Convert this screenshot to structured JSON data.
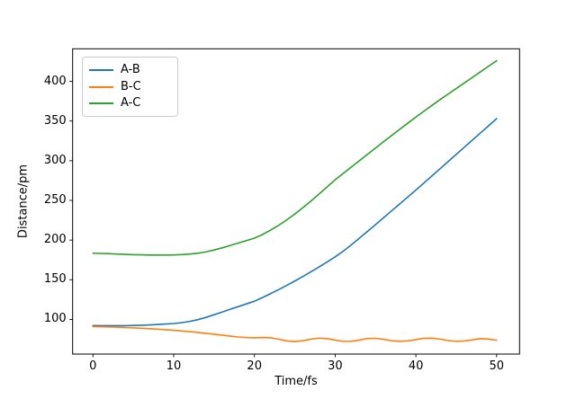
{
  "figure": {
    "background": "#ffffff",
    "text_color": "#000000",
    "spine_color": "#000000"
  },
  "chart_data": {
    "type": "line",
    "title": "",
    "xlabel": "Time/fs",
    "ylabel": "Distance/pm",
    "xlim": [
      -2.52,
      52.84
    ],
    "ylim": [
      56.4,
      441.0
    ],
    "xticks": [
      0,
      10,
      20,
      30,
      40,
      50
    ],
    "yticks": [
      100,
      150,
      200,
      250,
      300,
      350,
      400
    ],
    "grid": false,
    "legend_position": "upper left",
    "x": [
      0,
      1,
      2,
      3,
      4,
      5,
      6,
      7,
      8,
      9,
      10,
      11,
      12,
      13,
      14,
      15,
      16,
      17,
      18,
      19,
      20,
      21,
      22,
      23,
      24,
      25,
      26,
      27,
      28,
      29,
      30,
      31,
      32,
      33,
      34,
      35,
      36,
      37,
      38,
      39,
      40,
      41,
      42,
      43,
      44,
      45,
      46,
      47,
      48,
      49,
      50
    ],
    "series": [
      {
        "name": "A-B",
        "color": "#1f77b4",
        "values": [
          92.3,
          92.2,
          92.1,
          92.1,
          92.2,
          92.4,
          92.7,
          93.1,
          93.7,
          94.2,
          94.9,
          96.0,
          97.6,
          99.8,
          102.6,
          106.0,
          109.3,
          112.8,
          116.2,
          119.6,
          123.0,
          127.6,
          132.5,
          137.6,
          142.9,
          148.4,
          154.1,
          160.0,
          166.1,
          172.4,
          178.9,
          186.0,
          194.0,
          202.4,
          210.9,
          219.5,
          228.2,
          236.9,
          245.6,
          254.3,
          263.0,
          272.0,
          281.0,
          290.0,
          299.0,
          308.0,
          317.0,
          326.0,
          335.0,
          344.0,
          353.0
        ]
      },
      {
        "name": "B-C",
        "color": "#ff7f0e",
        "values": [
          91.0,
          90.8,
          90.6,
          90.3,
          89.9,
          89.4,
          88.9,
          88.3,
          87.7,
          87.0,
          86.3,
          85.5,
          84.6,
          83.6,
          82.5,
          81.4,
          80.2,
          79.0,
          77.9,
          77.2,
          76.8,
          77.3,
          76.9,
          75.2,
          72.9,
          72.2,
          73.2,
          75.2,
          76.5,
          75.9,
          74.0,
          72.4,
          72.5,
          74.0,
          76.0,
          76.2,
          75.0,
          73.2,
          72.5,
          73.0,
          74.6,
          76.3,
          76.4,
          75.2,
          73.5,
          72.4,
          72.8,
          74.3,
          75.9,
          75.3,
          73.8
        ]
      },
      {
        "name": "A-C",
        "color": "#2ca02c",
        "values": [
          183.5,
          183.2,
          182.8,
          182.4,
          182.0,
          181.6,
          181.4,
          181.2,
          181.1,
          181.1,
          181.3,
          181.7,
          182.4,
          183.4,
          185.2,
          187.5,
          190.2,
          193.2,
          196.2,
          199.3,
          202.5,
          207.0,
          212.5,
          218.6,
          225.4,
          232.8,
          240.8,
          249.2,
          258.0,
          267.0,
          276.0,
          284.0,
          292.0,
          300.0,
          308.0,
          316.0,
          324.0,
          331.8,
          339.6,
          347.3,
          355.0,
          362.4,
          369.8,
          377.0,
          384.0,
          391.0,
          398.0,
          405.0,
          412.0,
          419.0,
          426.0
        ]
      }
    ]
  }
}
